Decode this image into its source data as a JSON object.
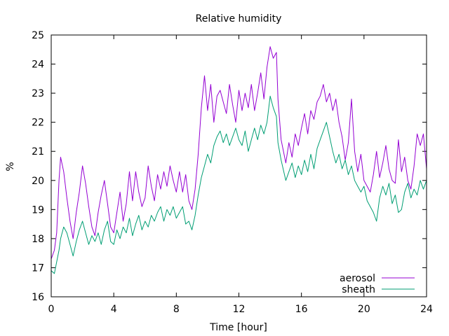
{
  "chart_data": {
    "type": "line",
    "title": "Relative humidity",
    "xlabel": "Time [hour]",
    "ylabel": "%",
    "xlim": [
      0,
      24
    ],
    "ylim": [
      16,
      25
    ],
    "xticks": [
      0,
      4,
      8,
      12,
      16,
      20,
      24
    ],
    "yticks": [
      16,
      17,
      18,
      19,
      20,
      21,
      22,
      23,
      24,
      25
    ],
    "grid": false,
    "legend_position": "bottom-right",
    "series": [
      {
        "name": "aerosol",
        "color": "#9400d3",
        "points": [
          [
            0.0,
            17.3
          ],
          [
            0.2,
            17.6
          ],
          [
            0.35,
            18.2
          ],
          [
            0.5,
            20.0
          ],
          [
            0.6,
            20.8
          ],
          [
            0.8,
            20.3
          ],
          [
            1.0,
            19.4
          ],
          [
            1.2,
            18.6
          ],
          [
            1.4,
            18.0
          ],
          [
            1.6,
            18.9
          ],
          [
            1.8,
            19.6
          ],
          [
            2.0,
            20.5
          ],
          [
            2.2,
            19.9
          ],
          [
            2.4,
            19.1
          ],
          [
            2.6,
            18.4
          ],
          [
            2.8,
            18.1
          ],
          [
            3.0,
            18.9
          ],
          [
            3.2,
            19.5
          ],
          [
            3.4,
            20.0
          ],
          [
            3.6,
            19.2
          ],
          [
            3.8,
            18.4
          ],
          [
            4.0,
            18.2
          ],
          [
            4.2,
            18.9
          ],
          [
            4.4,
            19.6
          ],
          [
            4.6,
            18.6
          ],
          [
            4.8,
            19.2
          ],
          [
            5.0,
            20.3
          ],
          [
            5.2,
            19.3
          ],
          [
            5.4,
            20.3
          ],
          [
            5.6,
            19.6
          ],
          [
            5.8,
            19.1
          ],
          [
            6.0,
            19.4
          ],
          [
            6.2,
            20.5
          ],
          [
            6.4,
            19.8
          ],
          [
            6.6,
            19.3
          ],
          [
            6.8,
            20.2
          ],
          [
            7.0,
            19.7
          ],
          [
            7.2,
            20.3
          ],
          [
            7.4,
            19.8
          ],
          [
            7.6,
            20.5
          ],
          [
            7.8,
            20.0
          ],
          [
            8.0,
            19.6
          ],
          [
            8.2,
            20.3
          ],
          [
            8.4,
            19.6
          ],
          [
            8.6,
            20.2
          ],
          [
            8.8,
            19.3
          ],
          [
            9.0,
            19.0
          ],
          [
            9.2,
            19.7
          ],
          [
            9.4,
            20.9
          ],
          [
            9.6,
            22.5
          ],
          [
            9.8,
            23.6
          ],
          [
            10.0,
            22.4
          ],
          [
            10.2,
            23.3
          ],
          [
            10.4,
            22.0
          ],
          [
            10.6,
            22.9
          ],
          [
            10.8,
            23.1
          ],
          [
            11.0,
            22.7
          ],
          [
            11.2,
            22.3
          ],
          [
            11.4,
            23.3
          ],
          [
            11.6,
            22.6
          ],
          [
            11.8,
            22.0
          ],
          [
            12.0,
            23.1
          ],
          [
            12.2,
            22.4
          ],
          [
            12.4,
            23.0
          ],
          [
            12.6,
            22.5
          ],
          [
            12.8,
            23.3
          ],
          [
            13.0,
            22.4
          ],
          [
            13.2,
            23.0
          ],
          [
            13.4,
            23.7
          ],
          [
            13.6,
            22.8
          ],
          [
            13.8,
            23.9
          ],
          [
            14.0,
            24.6
          ],
          [
            14.2,
            24.2
          ],
          [
            14.4,
            24.4
          ],
          [
            14.5,
            22.8
          ],
          [
            14.7,
            21.4
          ],
          [
            15.0,
            20.6
          ],
          [
            15.2,
            21.3
          ],
          [
            15.4,
            20.8
          ],
          [
            15.6,
            21.6
          ],
          [
            15.8,
            21.2
          ],
          [
            16.0,
            21.8
          ],
          [
            16.2,
            22.3
          ],
          [
            16.4,
            21.6
          ],
          [
            16.6,
            22.4
          ],
          [
            16.8,
            22.1
          ],
          [
            17.0,
            22.7
          ],
          [
            17.2,
            22.9
          ],
          [
            17.4,
            23.3
          ],
          [
            17.6,
            22.7
          ],
          [
            17.8,
            23.0
          ],
          [
            18.0,
            22.4
          ],
          [
            18.2,
            22.8
          ],
          [
            18.4,
            22.0
          ],
          [
            18.6,
            21.5
          ],
          [
            18.8,
            20.7
          ],
          [
            19.0,
            21.3
          ],
          [
            19.2,
            22.8
          ],
          [
            19.4,
            21.0
          ],
          [
            19.6,
            20.3
          ],
          [
            19.8,
            20.9
          ],
          [
            20.0,
            20.0
          ],
          [
            20.2,
            19.8
          ],
          [
            20.4,
            19.6
          ],
          [
            20.6,
            20.2
          ],
          [
            20.8,
            21.0
          ],
          [
            21.0,
            20.1
          ],
          [
            21.2,
            20.6
          ],
          [
            21.4,
            21.2
          ],
          [
            21.6,
            20.4
          ],
          [
            21.8,
            20.0
          ],
          [
            22.0,
            19.9
          ],
          [
            22.2,
            21.4
          ],
          [
            22.4,
            20.3
          ],
          [
            22.6,
            20.8
          ],
          [
            22.8,
            20.0
          ],
          [
            23.0,
            19.7
          ],
          [
            23.2,
            20.5
          ],
          [
            23.4,
            21.6
          ],
          [
            23.6,
            21.2
          ],
          [
            23.8,
            21.6
          ],
          [
            24.0,
            20.4
          ]
        ]
      },
      {
        "name": "sheath",
        "color": "#009e73",
        "points": [
          [
            0.0,
            16.9
          ],
          [
            0.2,
            16.8
          ],
          [
            0.35,
            17.2
          ],
          [
            0.5,
            17.6
          ],
          [
            0.6,
            18.0
          ],
          [
            0.8,
            18.4
          ],
          [
            1.0,
            18.2
          ],
          [
            1.2,
            17.8
          ],
          [
            1.4,
            17.4
          ],
          [
            1.6,
            17.9
          ],
          [
            1.8,
            18.3
          ],
          [
            2.0,
            18.6
          ],
          [
            2.2,
            18.2
          ],
          [
            2.4,
            17.8
          ],
          [
            2.6,
            18.1
          ],
          [
            2.8,
            17.9
          ],
          [
            3.0,
            18.2
          ],
          [
            3.2,
            17.8
          ],
          [
            3.4,
            18.3
          ],
          [
            3.6,
            18.6
          ],
          [
            3.8,
            17.9
          ],
          [
            4.0,
            17.8
          ],
          [
            4.2,
            18.3
          ],
          [
            4.4,
            18.0
          ],
          [
            4.6,
            18.4
          ],
          [
            4.8,
            18.2
          ],
          [
            5.0,
            18.7
          ],
          [
            5.2,
            18.1
          ],
          [
            5.4,
            18.5
          ],
          [
            5.6,
            18.8
          ],
          [
            5.8,
            18.3
          ],
          [
            6.0,
            18.6
          ],
          [
            6.2,
            18.4
          ],
          [
            6.4,
            18.8
          ],
          [
            6.6,
            18.6
          ],
          [
            6.8,
            18.9
          ],
          [
            7.0,
            19.1
          ],
          [
            7.2,
            18.6
          ],
          [
            7.4,
            19.0
          ],
          [
            7.6,
            18.8
          ],
          [
            7.8,
            19.1
          ],
          [
            8.0,
            18.7
          ],
          [
            8.2,
            18.9
          ],
          [
            8.4,
            19.1
          ],
          [
            8.6,
            18.5
          ],
          [
            8.8,
            18.6
          ],
          [
            9.0,
            18.3
          ],
          [
            9.2,
            18.8
          ],
          [
            9.4,
            19.5
          ],
          [
            9.6,
            20.1
          ],
          [
            9.8,
            20.5
          ],
          [
            10.0,
            20.9
          ],
          [
            10.2,
            20.6
          ],
          [
            10.4,
            21.2
          ],
          [
            10.6,
            21.5
          ],
          [
            10.8,
            21.7
          ],
          [
            11.0,
            21.3
          ],
          [
            11.2,
            21.6
          ],
          [
            11.4,
            21.2
          ],
          [
            11.6,
            21.5
          ],
          [
            11.8,
            21.8
          ],
          [
            12.0,
            21.4
          ],
          [
            12.2,
            21.2
          ],
          [
            12.4,
            21.7
          ],
          [
            12.6,
            21.0
          ],
          [
            12.8,
            21.4
          ],
          [
            13.0,
            21.8
          ],
          [
            13.2,
            21.4
          ],
          [
            13.4,
            21.9
          ],
          [
            13.6,
            21.6
          ],
          [
            13.8,
            22.0
          ],
          [
            14.0,
            22.9
          ],
          [
            14.2,
            22.5
          ],
          [
            14.4,
            22.2
          ],
          [
            14.5,
            21.3
          ],
          [
            14.7,
            20.7
          ],
          [
            15.0,
            20.0
          ],
          [
            15.2,
            20.3
          ],
          [
            15.4,
            20.6
          ],
          [
            15.6,
            20.1
          ],
          [
            15.8,
            20.5
          ],
          [
            16.0,
            20.2
          ],
          [
            16.2,
            20.7
          ],
          [
            16.4,
            20.3
          ],
          [
            16.6,
            20.9
          ],
          [
            16.8,
            20.4
          ],
          [
            17.0,
            21.1
          ],
          [
            17.2,
            21.4
          ],
          [
            17.4,
            21.7
          ],
          [
            17.6,
            22.0
          ],
          [
            17.8,
            21.5
          ],
          [
            18.0,
            21.0
          ],
          [
            18.2,
            20.6
          ],
          [
            18.4,
            20.9
          ],
          [
            18.6,
            20.4
          ],
          [
            18.8,
            20.7
          ],
          [
            19.0,
            20.2
          ],
          [
            19.2,
            20.5
          ],
          [
            19.4,
            20.0
          ],
          [
            19.6,
            19.8
          ],
          [
            19.8,
            19.6
          ],
          [
            20.0,
            19.8
          ],
          [
            20.2,
            19.3
          ],
          [
            20.4,
            19.1
          ],
          [
            20.6,
            18.9
          ],
          [
            20.8,
            18.6
          ],
          [
            21.0,
            19.4
          ],
          [
            21.2,
            19.8
          ],
          [
            21.4,
            19.5
          ],
          [
            21.6,
            19.9
          ],
          [
            21.8,
            19.2
          ],
          [
            22.0,
            19.5
          ],
          [
            22.2,
            18.9
          ],
          [
            22.4,
            19.0
          ],
          [
            22.6,
            19.6
          ],
          [
            22.8,
            19.9
          ],
          [
            23.0,
            19.4
          ],
          [
            23.2,
            19.7
          ],
          [
            23.4,
            19.5
          ],
          [
            23.6,
            20.0
          ],
          [
            23.8,
            19.7
          ],
          [
            24.0,
            20.0
          ]
        ]
      }
    ]
  }
}
